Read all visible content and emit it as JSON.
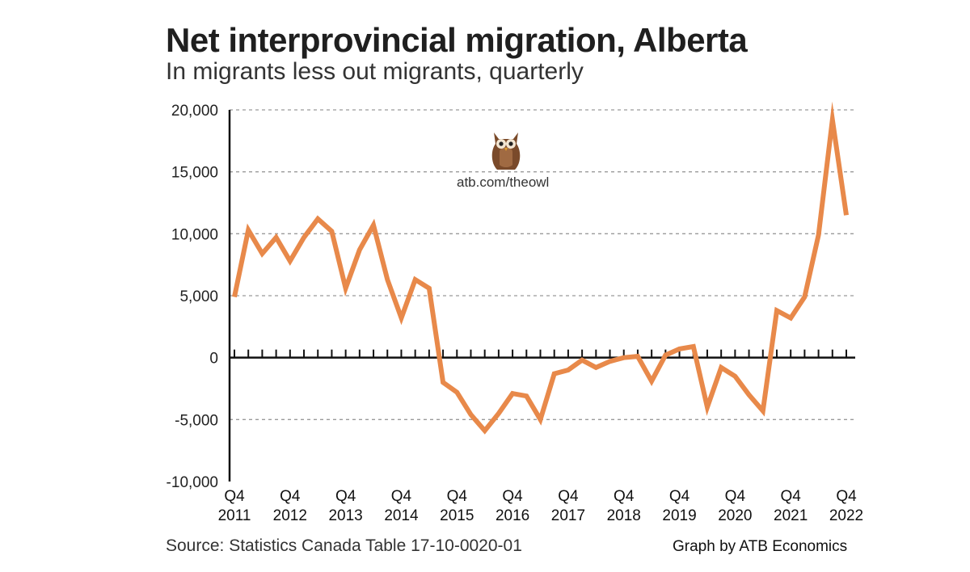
{
  "header": {
    "title": "Net interprovincial migration, Alberta",
    "subtitle": "In migrants less out migrants, quarterly"
  },
  "footer": {
    "source": "Source: Statistics Canada Table 17-10-0020-01",
    "credit": "Graph by ATB Economics"
  },
  "watermark": {
    "url": "atb.com/theowl",
    "icon": "owl-icon"
  },
  "colors": {
    "line": "#E8894A",
    "axis": "#111111",
    "grid": "#9a9a9a"
  },
  "chart_data": {
    "type": "line",
    "title": "Net interprovincial migration, Alberta",
    "subtitle": "In migrants less out migrants, quarterly",
    "xlabel": "",
    "ylabel": "",
    "ylim": [
      -10000,
      20000
    ],
    "yticks": [
      20000,
      15000,
      10000,
      5000,
      0,
      -5000,
      -10000
    ],
    "ytick_labels": [
      "20,000",
      "15,000",
      "10,000",
      "5,000",
      "0",
      "-5,000",
      "-10,000"
    ],
    "grid": "horizontal dashed",
    "x_ticks": [
      {
        "q": "Q4",
        "year": "2011",
        "index": 0
      },
      {
        "q": "Q4",
        "year": "2012",
        "index": 4
      },
      {
        "q": "Q4",
        "year": "2013",
        "index": 8
      },
      {
        "q": "Q4",
        "year": "2014",
        "index": 12
      },
      {
        "q": "Q4",
        "year": "2015",
        "index": 16
      },
      {
        "q": "Q4",
        "year": "2016",
        "index": 20
      },
      {
        "q": "Q4",
        "year": "2017",
        "index": 24
      },
      {
        "q": "Q4",
        "year": "2018",
        "index": 28
      },
      {
        "q": "Q4",
        "year": "2019",
        "index": 32
      },
      {
        "q": "Q4",
        "year": "2020",
        "index": 36
      },
      {
        "q": "Q4",
        "year": "2021",
        "index": 40
      },
      {
        "q": "Q4",
        "year": "2022",
        "index": 44
      }
    ],
    "series": [
      {
        "name": "Net interprovincial migration",
        "values": [
          4900,
          10300,
          8400,
          9700,
          7800,
          9700,
          11200,
          10200,
          5600,
          8700,
          10700,
          6300,
          3200,
          6300,
          5600,
          -2000,
          -2800,
          -4600,
          -5900,
          -4500,
          -2900,
          -3100,
          -5000,
          -1300,
          -1000,
          -200,
          -800,
          -300,
          0,
          100,
          -1900,
          200,
          700,
          900,
          -4000,
          -800,
          -1500,
          -3000,
          -4300,
          3800,
          3200,
          4900,
          9900,
          19200,
          11500
        ]
      }
    ]
  }
}
